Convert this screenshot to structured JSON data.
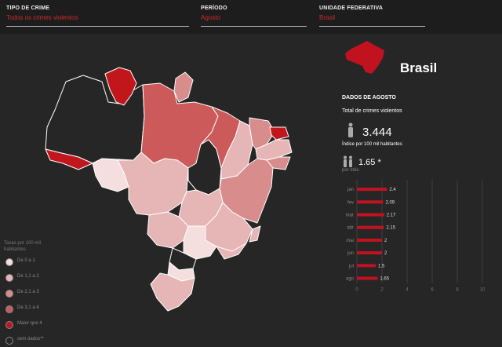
{
  "filters": {
    "crime_type": {
      "label": "TIPO DE CRIME",
      "value": "Todos os crimes violentos"
    },
    "period": {
      "label": "PERÍODO",
      "value": "Agosto"
    },
    "state": {
      "label": "UNIDADE FEDERATIVA",
      "value": "Brasil"
    }
  },
  "colors": {
    "accent": "#c1121f",
    "background": "#262626",
    "topbar": "#1d1d1d"
  },
  "map": {
    "legend": {
      "title": "Taxas por 100 mil habitantes",
      "items": [
        {
          "label": "De 0 a 1",
          "color": "#f4dede"
        },
        {
          "label": "De 1,1 a 2",
          "color": "#e6b5b5"
        },
        {
          "label": "De 2,1 a 3",
          "color": "#d98c8c"
        },
        {
          "label": "De 3,1 a 4",
          "color": "#cc5a5a"
        },
        {
          "label": "Maior que 4",
          "color": "#c0161c"
        },
        {
          "label": "sem dados**",
          "color": "#262626"
        }
      ]
    }
  },
  "panel": {
    "country": "Brasil",
    "section_title": "DADOS DE AGOSTO",
    "total_label": "Total de crimes violentos",
    "total_value": "3.444",
    "rate_label": "Índice por 100 mil habitantes",
    "rate_value": "1.65 *",
    "per_month_label": "por mês",
    "person_icon": "person-icon",
    "people_icon": "group-icon",
    "map_icon": "brazil-silhouette-icon"
  },
  "chart_data": {
    "type": "bar",
    "orientation": "horizontal",
    "categories": [
      "jan",
      "fev",
      "mar",
      "abr",
      "mai",
      "jun",
      "jul",
      "ago"
    ],
    "values": [
      2.4,
      2.09,
      2.17,
      2.15,
      2,
      2,
      1.5,
      1.65
    ],
    "value_labels": [
      "2.4",
      "2.09",
      "2.17",
      "2.15",
      "2",
      "2",
      "1.5",
      "1.65"
    ],
    "xlim": [
      0,
      10
    ],
    "x_ticks": [
      "0",
      "2",
      "4",
      "6",
      "8",
      "10"
    ],
    "bar_color": "#c1121f"
  }
}
